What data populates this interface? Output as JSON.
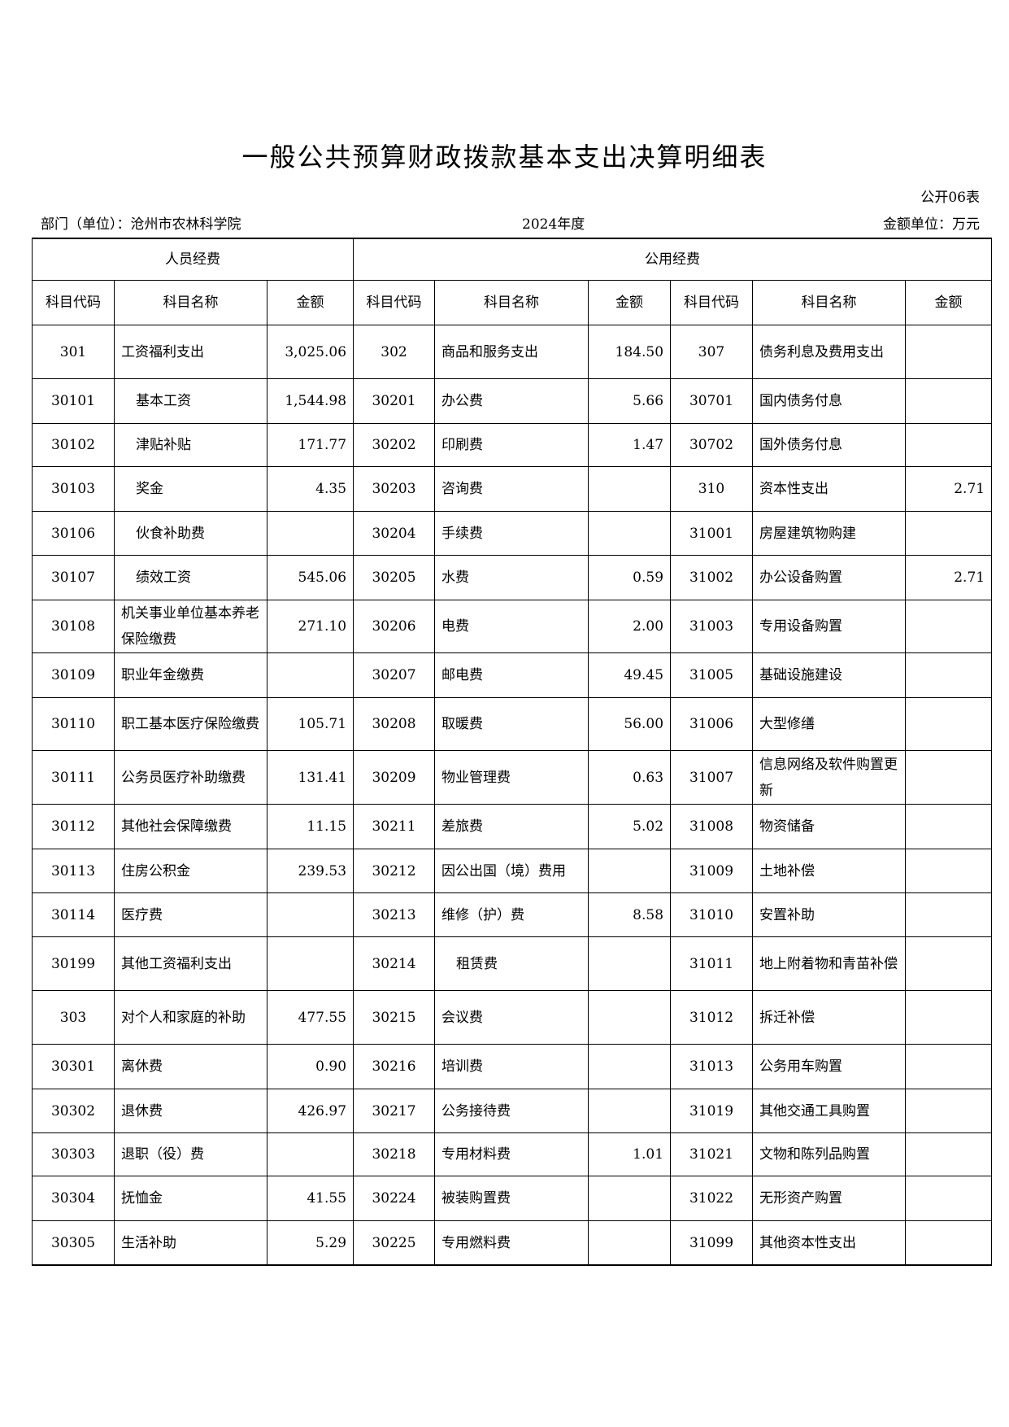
{
  "title": "一般公共预算财政拨款基本支出决算明细表",
  "form_no": "公开06表",
  "department": "部门（单位）：沧州市农林科学院",
  "year": "2024年度",
  "unit": "金额单位：万元",
  "groups": {
    "personnel": "人员经费",
    "public": "公用经费"
  },
  "columns": {
    "code": "科目代码",
    "name": "科目名称",
    "amount": "金额"
  },
  "rows": [
    [
      [
        "301",
        "工资福利支出",
        "3,025.06",
        0
      ],
      [
        "302",
        "商品和服务支出",
        "184.50",
        0
      ],
      [
        "307",
        "债务利息及费用支出",
        "",
        0
      ]
    ],
    [
      [
        "30101",
        "基本工资",
        "1,544.98",
        1
      ],
      [
        "30201",
        "办公费",
        "5.66",
        0
      ],
      [
        "30701",
        "国内债务付息",
        "",
        0
      ]
    ],
    [
      [
        "30102",
        "津贴补贴",
        "171.77",
        1
      ],
      [
        "30202",
        "印刷费",
        "1.47",
        0
      ],
      [
        "30702",
        "国外债务付息",
        "",
        0
      ]
    ],
    [
      [
        "30103",
        "奖金",
        "4.35",
        1
      ],
      [
        "30203",
        "咨询费",
        "",
        0
      ],
      [
        "310",
        "资本性支出",
        "2.71",
        0
      ]
    ],
    [
      [
        "30106",
        "伙食补助费",
        "",
        1
      ],
      [
        "30204",
        "手续费",
        "",
        0
      ],
      [
        "31001",
        "房屋建筑物购建",
        "",
        0
      ]
    ],
    [
      [
        "30107",
        "绩效工资",
        "545.06",
        1
      ],
      [
        "30205",
        "水费",
        "0.59",
        0
      ],
      [
        "31002",
        "办公设备购置",
        "2.71",
        0
      ]
    ],
    [
      [
        "30108",
        "机关事业单位基本养老保险缴费",
        "271.10",
        0
      ],
      [
        "30206",
        "电费",
        "2.00",
        0
      ],
      [
        "31003",
        "专用设备购置",
        "",
        0
      ]
    ],
    [
      [
        "30109",
        "职业年金缴费",
        "",
        0
      ],
      [
        "30207",
        "邮电费",
        "49.45",
        0
      ],
      [
        "31005",
        "基础设施建设",
        "",
        0
      ]
    ],
    [
      [
        "30110",
        "职工基本医疗保险缴费",
        "105.71",
        0
      ],
      [
        "30208",
        "取暖费",
        "56.00",
        0
      ],
      [
        "31006",
        "大型修缮",
        "",
        0
      ]
    ],
    [
      [
        "30111",
        "公务员医疗补助缴费",
        "131.41",
        0
      ],
      [
        "30209",
        "物业管理费",
        "0.63",
        0
      ],
      [
        "31007",
        "信息网络及软件购置更新",
        "",
        0
      ]
    ],
    [
      [
        "30112",
        "其他社会保障缴费",
        "11.15",
        0
      ],
      [
        "30211",
        "差旅费",
        "5.02",
        0
      ],
      [
        "31008",
        "物资储备",
        "",
        0
      ]
    ],
    [
      [
        "30113",
        "住房公积金",
        "239.53",
        0
      ],
      [
        "30212",
        "因公出国（境）费用",
        "",
        0
      ],
      [
        "31009",
        "土地补偿",
        "",
        0
      ]
    ],
    [
      [
        "30114",
        "医疗费",
        "",
        0
      ],
      [
        "30213",
        "维修（护）费",
        "8.58",
        0
      ],
      [
        "31010",
        "安置补助",
        "",
        0
      ]
    ],
    [
      [
        "30199",
        "其他工资福利支出",
        "",
        0
      ],
      [
        "30214",
        "租赁费",
        "",
        1
      ],
      [
        "31011",
        "地上附着物和青苗补偿",
        "",
        0
      ]
    ],
    [
      [
        "303",
        "对个人和家庭的补助",
        "477.55",
        0
      ],
      [
        "30215",
        "会议费",
        "",
        0
      ],
      [
        "31012",
        "拆迁补偿",
        "",
        0
      ]
    ],
    [
      [
        "30301",
        "离休费",
        "0.90",
        0
      ],
      [
        "30216",
        "培训费",
        "",
        0
      ],
      [
        "31013",
        "公务用车购置",
        "",
        0
      ]
    ],
    [
      [
        "30302",
        "退休费",
        "426.97",
        0
      ],
      [
        "30217",
        "公务接待费",
        "",
        0
      ],
      [
        "31019",
        "其他交通工具购置",
        "",
        0
      ]
    ],
    [
      [
        "30303",
        "退职（役）费",
        "",
        0
      ],
      [
        "30218",
        "专用材料费",
        "1.01",
        0
      ],
      [
        "31021",
        "文物和陈列品购置",
        "",
        0
      ]
    ],
    [
      [
        "30304",
        "抚恤金",
        "41.55",
        0
      ],
      [
        "30224",
        "被装购置费",
        "",
        0
      ],
      [
        "31022",
        "无形资产购置",
        "",
        0
      ]
    ],
    [
      [
        "30305",
        "生活补助",
        "5.29",
        0
      ],
      [
        "30225",
        "专用燃料费",
        "",
        0
      ],
      [
        "31099",
        "其他资本性支出",
        "",
        0
      ]
    ]
  ]
}
